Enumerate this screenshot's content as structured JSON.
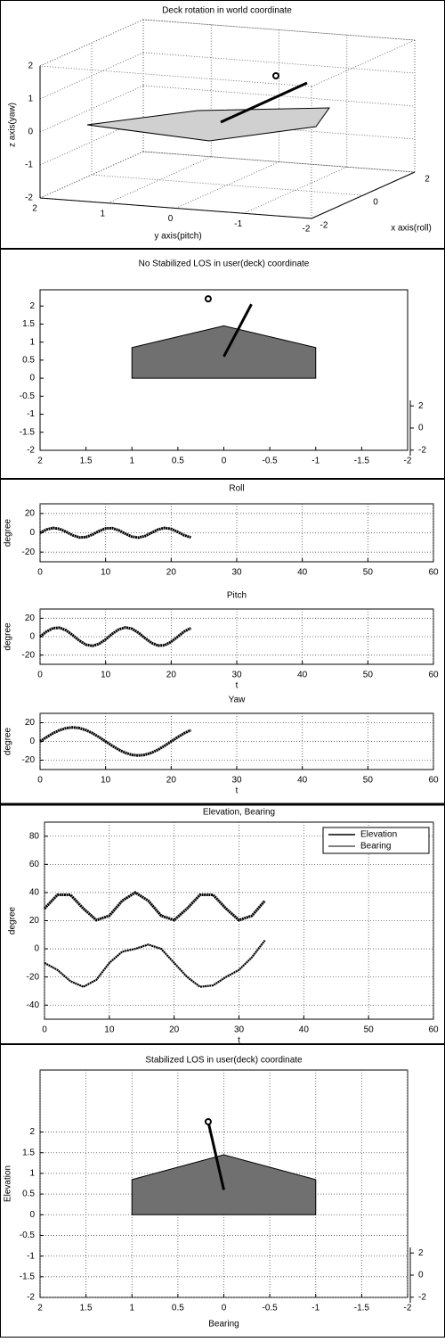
{
  "chart_data": [
    {
      "type": "3d",
      "title": "Deck rotation in world coordinate",
      "xlabel": "x axis(roll)",
      "ylabel": "y axis(pitch)",
      "zlabel": "z axis(yaw)",
      "xlim": [
        -2,
        2
      ],
      "xticks": [
        -2,
        0,
        2
      ],
      "ylim": [
        -2,
        2
      ],
      "yticks": [
        2,
        1,
        0,
        -1,
        -2
      ],
      "zlim": [
        -2,
        2
      ],
      "zticks": [
        -2,
        -1,
        0,
        1,
        2
      ],
      "grid": true
    },
    {
      "type": "polygon",
      "title": "No Stabilized LOS in user(deck) coordinate",
      "xlim": [
        2,
        -2
      ],
      "xticks": [
        2,
        1.5,
        1,
        0.5,
        0,
        -0.5,
        -1,
        -1.5,
        -2
      ],
      "ylim": [
        -2,
        2.45
      ],
      "yticks": [
        -2,
        -1.5,
        -1,
        -0.5,
        0,
        0.5,
        1,
        1.5,
        2
      ],
      "y2lim": [
        -2.5,
        2.5
      ],
      "y2ticks": [
        -2,
        0,
        2
      ],
      "grid": false,
      "deck": {
        "x": [
          1,
          1,
          0,
          -1,
          -1
        ],
        "y": [
          0,
          0.85,
          1.45,
          0.85,
          0
        ],
        "color": "#707070"
      },
      "los": {
        "x": [
          0,
          -0.3
        ],
        "y": [
          0.6,
          2.05
        ]
      },
      "target": {
        "x": 0.17,
        "y": 2.2
      }
    },
    {
      "type": "line",
      "title": "Roll",
      "ylabel": "degree",
      "xlim": [
        0,
        60
      ],
      "xticks": [
        0,
        10,
        20,
        30,
        40,
        50,
        60
      ],
      "ylim": [
        -30,
        30
      ],
      "yticks": [
        -20,
        0,
        20
      ],
      "grid": true,
      "color": "#000000",
      "x": [
        0,
        1,
        2,
        3,
        4,
        5,
        6,
        7,
        8,
        9,
        10,
        11,
        12,
        13,
        14,
        15,
        16,
        17,
        18,
        19,
        20,
        21,
        22,
        23
      ],
      "values": [
        0,
        3.4,
        5.0,
        4.0,
        0.9,
        -2.6,
        -4.8,
        -4.5,
        -1.8,
        1.8,
        4.5,
        4.8,
        2.6,
        -0.9,
        -4.0,
        -5.0,
        -3.4,
        0,
        3.4,
        5.0,
        4.0,
        0.9,
        -2.6,
        -4.8
      ]
    },
    {
      "type": "line",
      "title": "Pitch",
      "xlabel": "t",
      "ylabel": "degree",
      "xlim": [
        0,
        60
      ],
      "xticks": [
        0,
        10,
        20,
        30,
        40,
        50,
        60
      ],
      "ylim": [
        -30,
        30
      ],
      "yticks": [
        -20,
        0,
        20
      ],
      "grid": true,
      "color": "#000000",
      "x": [
        0,
        1,
        2,
        3,
        4,
        5,
        6,
        7,
        8,
        9,
        10,
        11,
        12,
        13,
        14,
        15,
        16,
        17,
        18,
        19,
        20,
        21,
        22,
        23
      ],
      "values": [
        0,
        5.6,
        9.3,
        9.7,
        6.8,
        1.5,
        -4.3,
        -8.7,
        -10.0,
        -7.8,
        -3.0,
        3.0,
        7.8,
        10.0,
        8.7,
        4.3,
        -1.5,
        -6.8,
        -9.7,
        -9.3,
        -5.6,
        0,
        5.6,
        9.3
      ]
    },
    {
      "type": "line",
      "title": "Yaw",
      "xlabel": "t",
      "ylabel": "degree",
      "xlim": [
        0,
        60
      ],
      "xticks": [
        0,
        10,
        20,
        30,
        40,
        50,
        60
      ],
      "ylim": [
        -30,
        30
      ],
      "yticks": [
        -20,
        0,
        20
      ],
      "grid": true,
      "color": "#000000",
      "x": [
        0,
        1,
        2,
        3,
        4,
        5,
        6,
        7,
        8,
        9,
        10,
        11,
        12,
        13,
        14,
        15,
        16,
        17,
        18,
        19,
        20,
        21,
        22,
        23
      ],
      "values": [
        0,
        4.6,
        8.8,
        12.1,
        14.3,
        15,
        14.3,
        12.1,
        8.8,
        4.6,
        0,
        -4.6,
        -8.8,
        -12.1,
        -14.3,
        -15,
        -14.3,
        -12.1,
        -8.8,
        -4.6,
        0,
        4.6,
        8.8,
        12.1
      ]
    },
    {
      "type": "line",
      "title": "Elevation, Bearing",
      "xlabel": "t",
      "ylabel": "degree",
      "xlim": [
        0,
        60
      ],
      "xticks": [
        0,
        10,
        20,
        30,
        40,
        50,
        60
      ],
      "ylim": [
        -50,
        90
      ],
      "yticks": [
        -40,
        -20,
        0,
        20,
        40,
        60,
        80
      ],
      "grid": true,
      "legend": "upper right",
      "x": [
        0,
        2,
        4,
        6,
        8,
        10,
        12,
        14,
        16,
        18,
        20,
        22,
        24,
        26,
        28,
        30,
        32,
        34
      ],
      "series": [
        {
          "name": "Elevation",
          "color": "#000000",
          "values": [
            28.6,
            38.4,
            38.4,
            28.6,
            20.4,
            23.5,
            34.2,
            40,
            34.2,
            23.5,
            20.4,
            28.6,
            38.4,
            38.4,
            28.6,
            20.4,
            23.5,
            34.2
          ]
        },
        {
          "name": "Bearing",
          "color": "#000000",
          "values": [
            -10,
            -15,
            -23,
            -27,
            -22,
            -10,
            -2,
            0,
            3,
            0,
            -10,
            -20,
            -27,
            -26,
            -20,
            -15,
            -6,
            6
          ]
        }
      ]
    },
    {
      "type": "polygon",
      "title": "Stabilized LOS in user(deck) coordinate",
      "xlabel": "Bearing",
      "ylabel": "Elevation",
      "xlim": [
        2,
        -2
      ],
      "xticks": [
        2,
        1.5,
        1,
        0.5,
        0,
        -0.5,
        -1,
        -1.5,
        -2
      ],
      "ylim": [
        -2,
        3.5
      ],
      "yticks": [
        -2,
        -1.5,
        -1,
        -0.5,
        0,
        0.5,
        1,
        1.5,
        2
      ],
      "y2lim": [
        -2.5,
        2.5
      ],
      "y2ticks": [
        -2,
        0,
        2
      ],
      "grid": true,
      "deck": {
        "x": [
          1,
          1,
          0,
          -1,
          -1
        ],
        "y": [
          0,
          0.85,
          1.45,
          0.85,
          0
        ],
        "color": "#707070"
      },
      "los": {
        "x": [
          0,
          0.17
        ],
        "y": [
          0.6,
          2.25
        ]
      },
      "target": {
        "x": 0.17,
        "y": 2.25
      }
    }
  ]
}
